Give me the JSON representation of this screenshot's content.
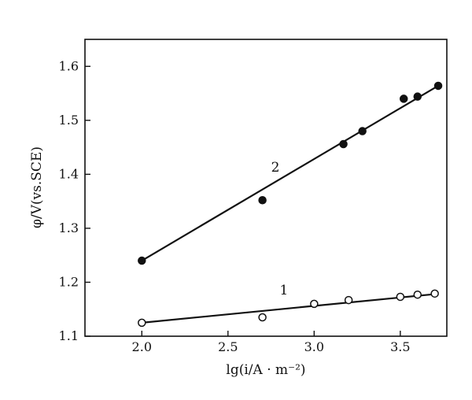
{
  "chart_data": {
    "type": "scatter",
    "title": "",
    "xlabel": "lg(i/A · m⁻²)",
    "ylabel": "φ/V(vs.SCE)",
    "xlim": [
      1.67,
      3.77
    ],
    "ylim": [
      1.1,
      1.65
    ],
    "xticks": [
      2.0,
      2.5,
      3.0,
      3.5
    ],
    "xtick_labels": [
      "2.0",
      "2.5",
      "3.0",
      "3.5"
    ],
    "yticks": [
      1.1,
      1.2,
      1.3,
      1.4,
      1.5,
      1.6
    ],
    "ytick_labels": [
      "1.1",
      "1.2",
      "1.3",
      "1.4",
      "1.5",
      "1.6"
    ],
    "grid": false,
    "legend": "none",
    "series": [
      {
        "label": "1",
        "marker": "open-circle",
        "color": "#111111",
        "x": [
          2.0,
          2.7,
          3.0,
          3.2,
          3.5,
          3.6,
          3.7
        ],
        "y": [
          1.125,
          1.135,
          1.16,
          1.167,
          1.173,
          1.177,
          1.179
        ],
        "fit_line": {
          "x": [
            2.0,
            3.7
          ],
          "y": [
            1.125,
            1.178
          ]
        }
      },
      {
        "label": "2",
        "marker": "filled-circle",
        "color": "#111111",
        "x": [
          2.0,
          2.7,
          3.17,
          3.28,
          3.52,
          3.6,
          3.72
        ],
        "y": [
          1.24,
          1.352,
          1.456,
          1.48,
          1.54,
          1.544,
          1.564
        ],
        "fit_line": {
          "x": [
            2.0,
            3.72
          ],
          "y": [
            1.24,
            1.564
          ]
        }
      }
    ]
  }
}
